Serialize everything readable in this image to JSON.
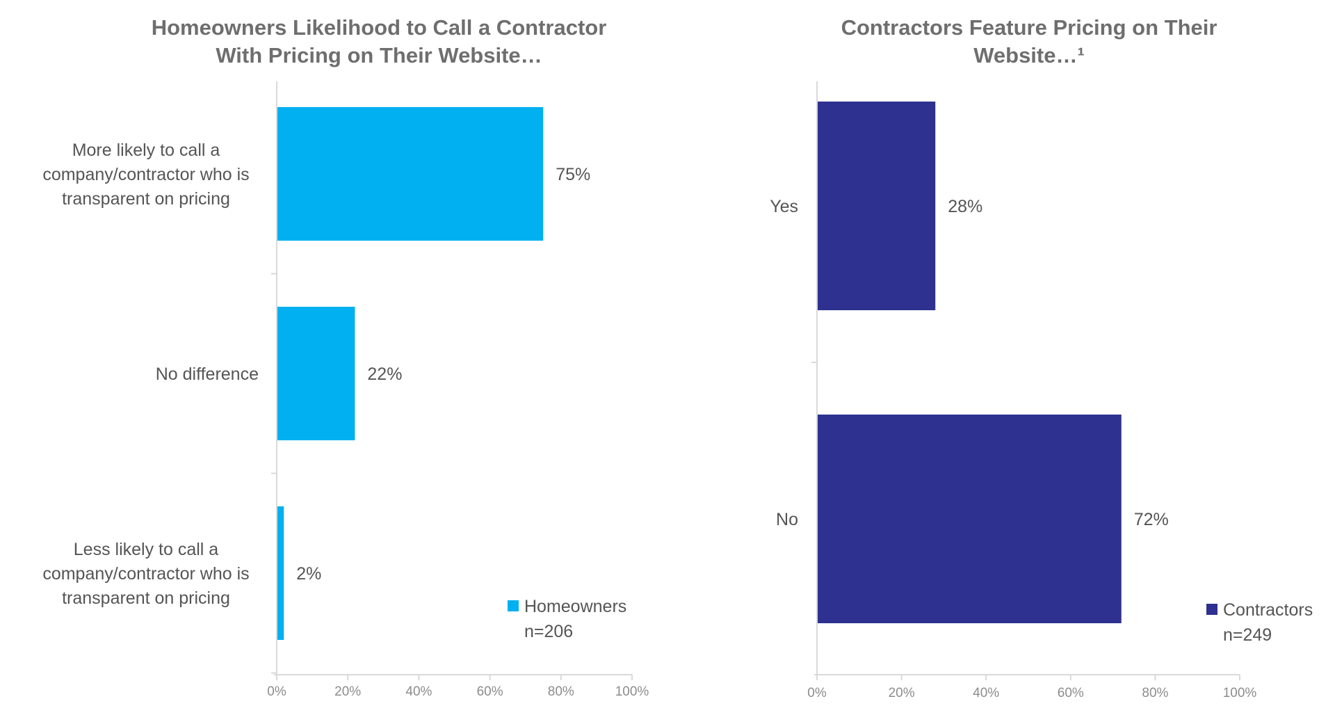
{
  "colors": {
    "homeowners": "#00B0F0",
    "contractors": "#2E3190",
    "axis": "#d9d9d9",
    "text": "#555555"
  },
  "chart_data": [
    {
      "type": "bar",
      "orientation": "horizontal",
      "title_lines": [
        "Homeowners Likelihood to Call a Contractor",
        "With Pricing on Their Website…"
      ],
      "categories": [
        [
          "More likely to call a",
          "company/contractor who is",
          "transparent on pricing"
        ],
        [
          "No difference"
        ],
        [
          "Less likely to call a",
          "company/contractor who is",
          "transparent on pricing"
        ]
      ],
      "series": [
        {
          "name": "Homeowners",
          "values": [
            75,
            22,
            2
          ]
        }
      ],
      "value_labels": [
        "75%",
        "22%",
        "2%"
      ],
      "xlim": [
        0,
        100
      ],
      "xticks": [
        "0%",
        "20%",
        "40%",
        "60%",
        "80%",
        "100%"
      ],
      "legend": {
        "label": "Homeowners",
        "note": "n=206",
        "position": "bottom-right"
      }
    },
    {
      "type": "bar",
      "orientation": "horizontal",
      "title_lines": [
        "Contractors Feature Pricing on Their",
        "Website…¹"
      ],
      "categories": [
        [
          "Yes"
        ],
        [
          "No"
        ]
      ],
      "series": [
        {
          "name": "Contractors",
          "values": [
            28,
            72
          ]
        }
      ],
      "value_labels": [
        "28%",
        "72%"
      ],
      "xlim": [
        0,
        100
      ],
      "xticks": [
        "0%",
        "20%",
        "40%",
        "60%",
        "80%",
        "100%"
      ],
      "legend": {
        "label": "Contractors",
        "note": "n=249",
        "position": "bottom-right"
      }
    }
  ]
}
